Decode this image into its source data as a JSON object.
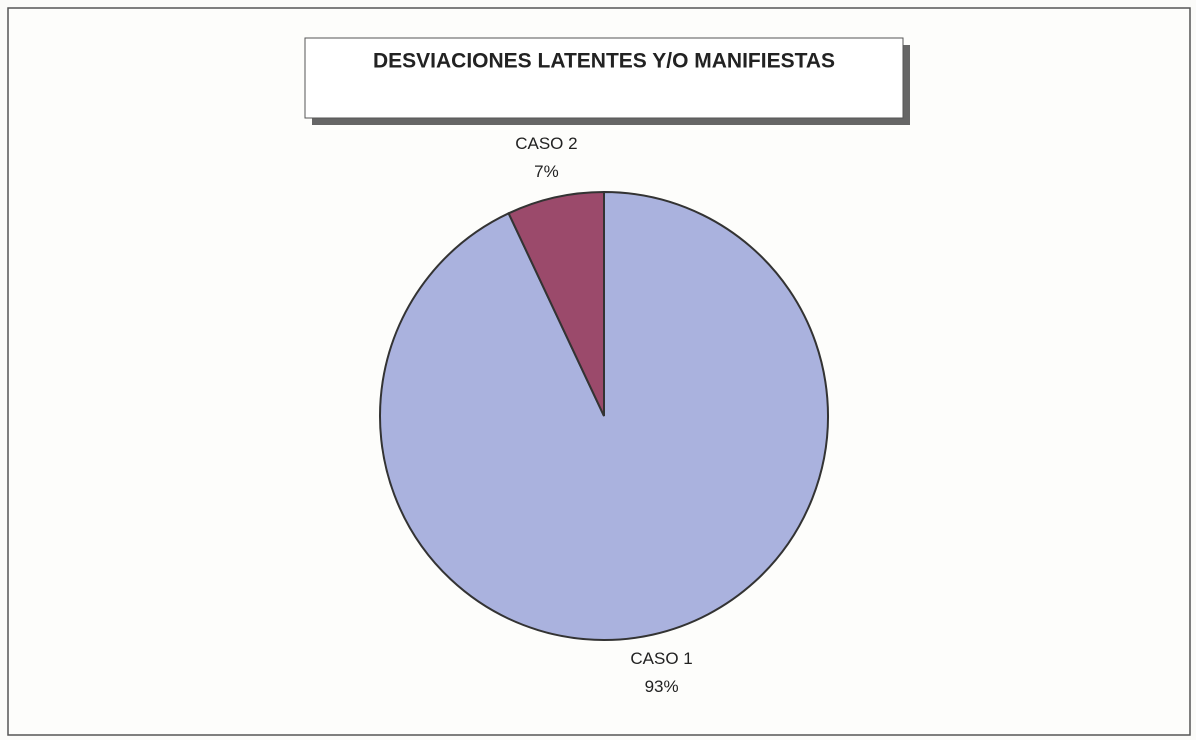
{
  "chart_data": {
    "type": "pie",
    "title": "DESVIACIONES LATENTES Y/O MANIFIESTAS",
    "categories": [
      "CASO 1",
      "CASO 2"
    ],
    "values": [
      93,
      7
    ],
    "value_labels": [
      "93%",
      "7%"
    ],
    "colors": [
      "#aab2de",
      "#9b4a6b"
    ]
  }
}
